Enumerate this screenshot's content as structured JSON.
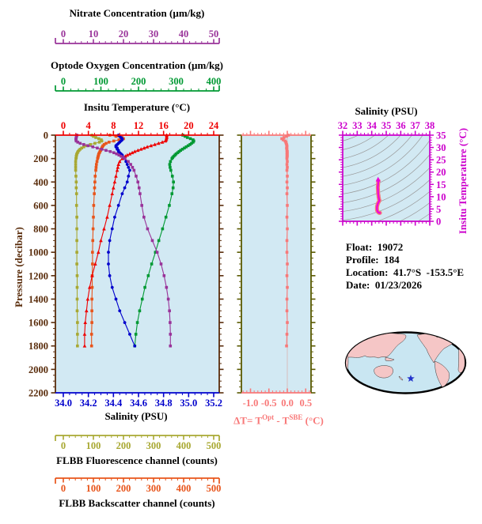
{
  "info": {
    "float": {
      "label": "Float:",
      "value": "19072"
    },
    "profile": {
      "label": "Profile:",
      "value": "184"
    },
    "location": {
      "label": "Location:",
      "value": "41.7°S  -153.5°E"
    },
    "date": {
      "label": "Date:",
      "value": "01/23/2026"
    }
  },
  "delta_t_title": {
    "prefix": "ΔT= T",
    "sup1": "Opt",
    "mid": " - T",
    "sup2": "SBE",
    "suffix": " (°C)"
  },
  "chart_data": {
    "type": "line",
    "plot_background": "#d2e9f3",
    "axes": {
      "nitrate": {
        "title": "Nitrate Concentration (µm/kg)",
        "color": "#993399",
        "min": 0,
        "max": 50,
        "major": 10,
        "minor": 2,
        "labels": [
          "0",
          "10",
          "20",
          "30",
          "40",
          "50"
        ],
        "label_values": [
          0,
          10,
          20,
          30,
          40,
          50
        ]
      },
      "oxygen": {
        "title": "Optode Oxygen Concentration (µm/kg)",
        "color": "#009933",
        "min": 0,
        "max": 400,
        "major": 100,
        "minor": 20,
        "labels": [
          "0",
          "100",
          "200",
          "300",
          "400"
        ],
        "label_values": [
          0,
          100,
          200,
          300,
          400
        ]
      },
      "temperature": {
        "title": "Insitu Temperature (°C)",
        "color": "#ee0000",
        "min": 0,
        "max": 24,
        "major": 4,
        "minor": 1,
        "labels": [
          "0",
          "4",
          "8",
          "12",
          "16",
          "20",
          "24"
        ],
        "label_values": [
          0,
          4,
          8,
          12,
          16,
          20,
          24
        ]
      },
      "salinity": {
        "title": "Salinity (PSU)",
        "color": "#0000cc",
        "min": 34.0,
        "max": 35.2,
        "major": 0.2,
        "minor": 0.05,
        "labels": [
          "34.0",
          "34.2",
          "34.4",
          "34.6",
          "34.8",
          "35.0",
          "35.2"
        ],
        "label_values": [
          34.0,
          34.2,
          34.4,
          34.6,
          34.8,
          35.0,
          35.2
        ]
      },
      "pressure": {
        "title": "Pressure (decibar)",
        "color": "#5a2d0c",
        "min": 0,
        "max": 2200,
        "major": 200,
        "minor": 50,
        "labels": [
          "0",
          "200",
          "400",
          "600",
          "800",
          "1000",
          "1200",
          "1400",
          "1600",
          "1800",
          "2000",
          "2200"
        ],
        "label_values": [
          0,
          200,
          400,
          600,
          800,
          1000,
          1200,
          1400,
          1600,
          1800,
          2000,
          2200
        ]
      },
      "fluorescence": {
        "title": "FLBB Fluorescence channel (counts)",
        "color": "#a8a832",
        "min": 0,
        "max": 500,
        "major": 100,
        "minor": 20,
        "labels": [
          "0",
          "100",
          "200",
          "300",
          "400",
          "500"
        ],
        "label_values": [
          0,
          100,
          200,
          300,
          400,
          500
        ]
      },
      "backscatter": {
        "title": "FLBB Backscatter channel (counts)",
        "color": "#e8541a",
        "min": 0,
        "max": 500,
        "major": 100,
        "minor": 20,
        "labels": [
          "0",
          "100",
          "200",
          "300",
          "400",
          "500"
        ],
        "label_values": [
          0,
          100,
          200,
          300,
          400,
          500
        ]
      },
      "delta_t": {
        "color": "#f87878",
        "axis_color": "#5a5a00",
        "min": -1.25,
        "max": 0.65,
        "major": 0.5,
        "minor": 0.1,
        "labels": [
          "-1.0",
          "-0.5",
          "0.0",
          "0.5"
        ],
        "label_values": [
          -1.0,
          -0.5,
          0.0,
          0.5
        ],
        "zero_line_color": "#d8b8b8"
      },
      "ts_salinity": {
        "title": "Salinity (PSU)",
        "color": "#cc00cc",
        "min": 32,
        "max": 38,
        "major": 1,
        "minor": 0.25,
        "labels": [
          "32",
          "33",
          "34",
          "35",
          "36",
          "37",
          "38"
        ],
        "label_values": [
          32,
          33,
          34,
          35,
          36,
          37,
          38
        ]
      },
      "ts_temperature": {
        "title": "Insitu Temperature (°C)",
        "color": "#cc00cc",
        "min": 0,
        "max": 35,
        "major": 5,
        "minor": 1,
        "labels": [
          "0",
          "5",
          "10",
          "15",
          "20",
          "25",
          "30",
          "35"
        ],
        "label_values": [
          0,
          5,
          10,
          15,
          20,
          25,
          30,
          35
        ]
      }
    },
    "profiles": {
      "pressure_levels": [
        0,
        10,
        20,
        30,
        40,
        50,
        60,
        70,
        80,
        90,
        100,
        110,
        120,
        130,
        140,
        150,
        160,
        170,
        180,
        190,
        200,
        225,
        250,
        275,
        300,
        350,
        400,
        450,
        500,
        600,
        700,
        800,
        900,
        1000,
        1100,
        1200,
        1300,
        1400,
        1500,
        1600,
        1700,
        1800
      ],
      "series": [
        {
          "name": "oxygen",
          "axis": "oxygen",
          "color": "#009933",
          "marker": "square",
          "values": [
            318,
            324,
            330,
            338,
            345,
            347,
            345,
            341,
            337,
            332,
            327,
            322,
            317,
            312,
            308,
            304,
            300,
            297,
            294,
            291,
            289,
            285,
            283,
            284,
            286,
            290,
            293,
            292,
            289,
            282,
            273,
            264,
            254,
            245,
            235,
            226,
            217,
            210,
            203,
            197,
            193,
            190
          ]
        },
        {
          "name": "fluorescence",
          "axis": "fluorescence",
          "color": "#a8a832",
          "marker": "square",
          "values": [
            95,
            100,
            108,
            118,
            126,
            128,
            120,
            105,
            90,
            78,
            68,
            61,
            56,
            52,
            49,
            47,
            45,
            44,
            43,
            43,
            42,
            41,
            41,
            41,
            41,
            42,
            43,
            43,
            44,
            44,
            45,
            45,
            45,
            45,
            45,
            46,
            46,
            46,
            46,
            47,
            47,
            47
          ]
        },
        {
          "name": "backscatter",
          "axis": "backscatter",
          "color": "#e8541a",
          "marker": "square",
          "values": [
            155,
            175,
            195,
            200,
            185,
            168,
            152,
            142,
            136,
            132,
            130,
            128,
            126,
            124,
            122,
            120,
            118,
            117,
            116,
            115,
            114,
            112,
            110,
            109,
            108,
            106,
            105,
            104,
            103,
            101,
            100,
            99,
            98,
            97,
            97,
            96,
            96,
            95,
            95,
            95,
            94,
            94
          ]
        },
        {
          "name": "insitu_temperature",
          "axis": "temperature",
          "color": "#ee0000",
          "marker": "triangle",
          "values": [
            16.5,
            16.5,
            16.5,
            16.45,
            16.4,
            16.3,
            15.8,
            15.2,
            14.6,
            14.0,
            13.4,
            12.9,
            12.4,
            11.9,
            11.4,
            11.0,
            10.6,
            10.2,
            9.9,
            9.6,
            9.4,
            9.0,
            8.8,
            8.7,
            8.6,
            8.4,
            8.2,
            8.0,
            7.8,
            7.4,
            7.0,
            6.5,
            6.0,
            5.6,
            5.1,
            4.6,
            4.2,
            3.9,
            3.7,
            3.5,
            3.4,
            3.4
          ]
        },
        {
          "name": "salinity",
          "axis": "salinity",
          "color": "#0000cc",
          "marker": "circle",
          "values": [
            34.44,
            34.45,
            34.46,
            34.47,
            34.47,
            34.46,
            34.45,
            34.44,
            34.43,
            34.42,
            34.42,
            34.43,
            34.43,
            34.44,
            34.44,
            34.45,
            34.46,
            34.47,
            34.47,
            34.48,
            34.49,
            34.5,
            34.51,
            34.52,
            34.53,
            34.52,
            34.51,
            34.49,
            34.47,
            34.44,
            34.41,
            34.39,
            34.37,
            34.36,
            34.36,
            34.37,
            34.39,
            34.42,
            34.45,
            34.49,
            34.53,
            34.57
          ]
        },
        {
          "name": "nitrate",
          "axis": "nitrate",
          "color": "#993399",
          "marker": "square",
          "values": [
            4.5,
            4.4,
            4.3,
            4.2,
            4.2,
            4.3,
            4.8,
            5.6,
            6.8,
            8.2,
            9.8,
            11.3,
            12.8,
            14.2,
            15.6,
            16.8,
            17.7,
            18.5,
            19.2,
            19.9,
            20.5,
            21.6,
            22.4,
            23.0,
            23.5,
            24.2,
            24.8,
            25.2,
            25.5,
            26.1,
            26.8,
            28.0,
            29.6,
            31.2,
            32.5,
            33.5,
            34.3,
            34.9,
            35.3,
            35.5,
            35.6,
            35.6
          ]
        }
      ]
    },
    "delta_t_values": [
      0.03,
      -0.02,
      -0.09,
      -0.15,
      -0.11,
      -0.06,
      -0.04,
      -0.03,
      -0.02,
      -0.01,
      -0.01,
      -0.02,
      -0.01,
      -0.01,
      0.0,
      -0.01,
      0.0,
      -0.01,
      0.0,
      -0.01,
      -0.01,
      0.0,
      -0.01,
      0.0,
      -0.01,
      0.0,
      -0.01,
      0.0,
      -0.01,
      0.0,
      -0.01,
      0.0,
      -0.01,
      -0.01,
      0.0,
      -0.01,
      0.0,
      -0.01,
      -0.01,
      0.0,
      -0.01,
      -0.02
    ],
    "ts_diagram": {
      "curve_halo_color": "#f87878",
      "curve_core_color": "#ee00dd",
      "contour_color": "#999999"
    },
    "map": {
      "ocean": "#c9e6f2",
      "land": "#f5c6c6",
      "outline": "#000000",
      "star": "#2233cc"
    }
  }
}
